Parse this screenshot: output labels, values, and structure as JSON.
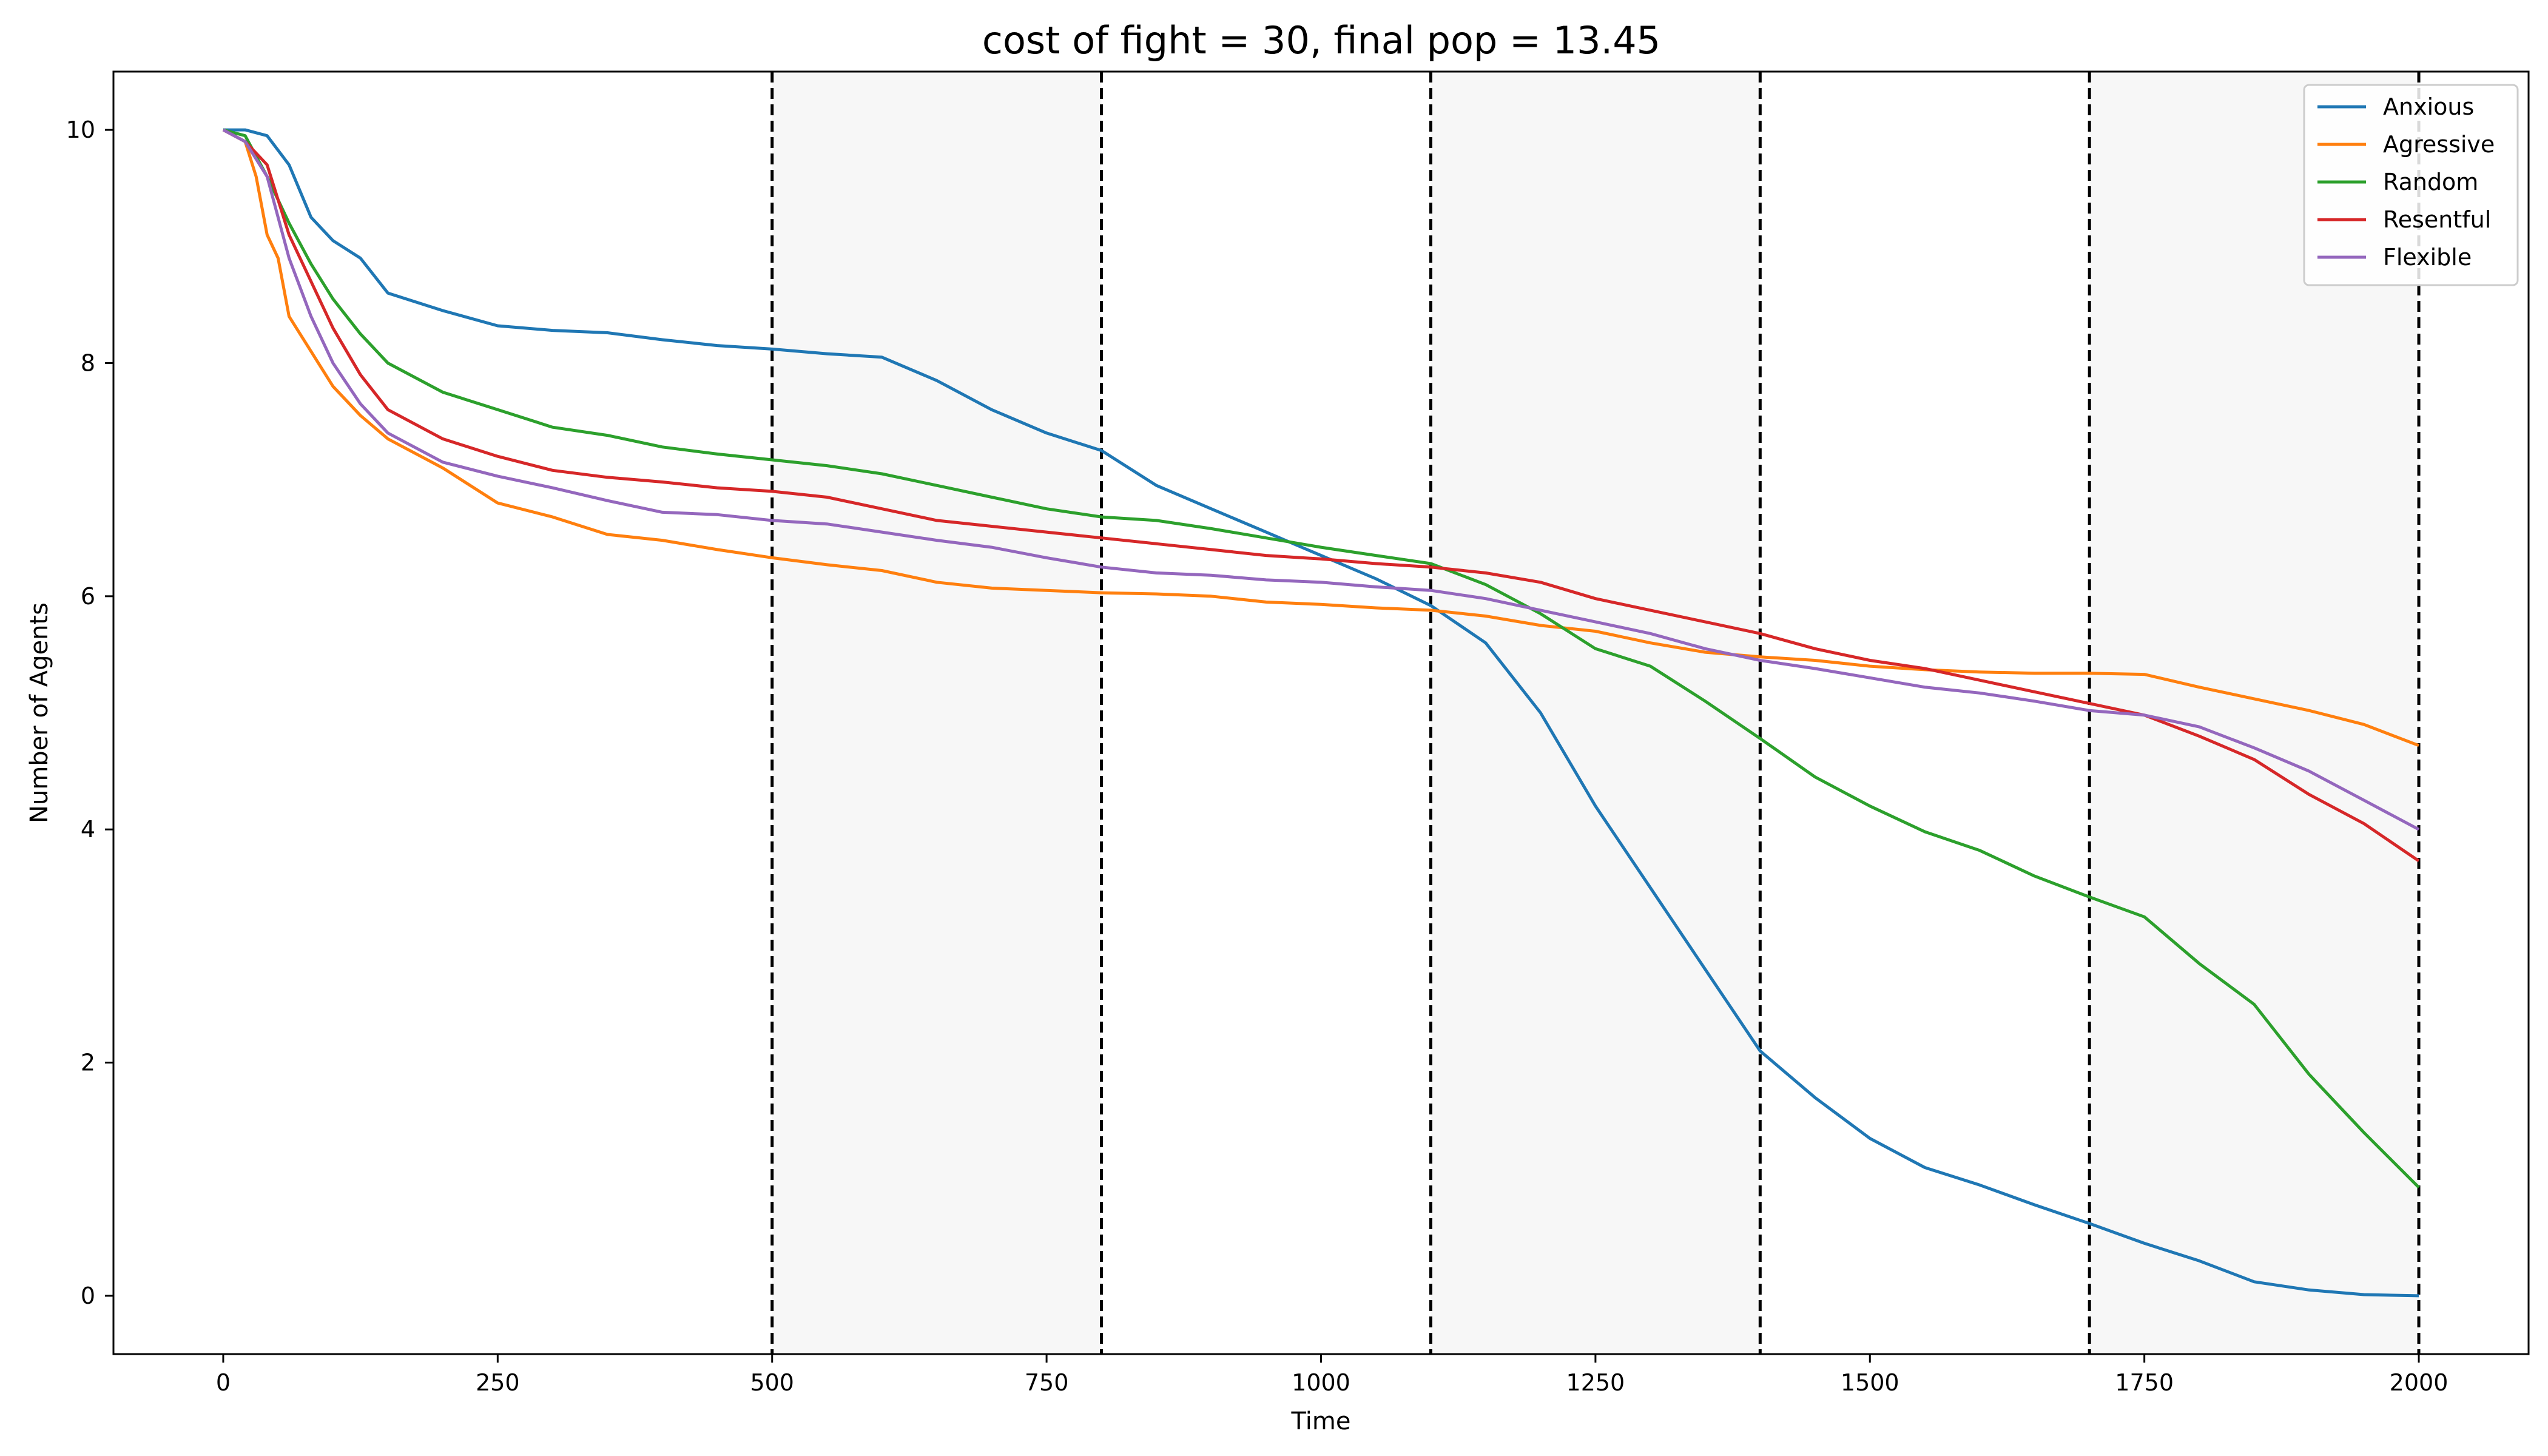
{
  "chart_data": {
    "type": "line",
    "title": "cost of fight = 30, final pop = 13.45",
    "xlabel": "Time",
    "ylabel": "Number of Agents",
    "xlim": [
      -100,
      2100
    ],
    "ylim": [
      -0.5,
      10.5
    ],
    "xticks": [
      0,
      250,
      500,
      750,
      1000,
      1250,
      1500,
      1750,
      2000
    ],
    "yticks": [
      0,
      2,
      4,
      6,
      8,
      10
    ],
    "grid": false,
    "legend_position": "top-right",
    "shaded_intervals": [
      [
        500,
        800
      ],
      [
        1100,
        1400
      ],
      [
        1700,
        2000
      ]
    ],
    "vertical_lines": [
      500,
      800,
      1100,
      1400,
      1700,
      2000
    ],
    "series": [
      {
        "name": "Anxious",
        "color": "#1f77b4",
        "points": [
          [
            0,
            10
          ],
          [
            20,
            10
          ],
          [
            40,
            9.95
          ],
          [
            60,
            9.7
          ],
          [
            80,
            9.25
          ],
          [
            100,
            9.05
          ],
          [
            125,
            8.9
          ],
          [
            150,
            8.6
          ],
          [
            200,
            8.45
          ],
          [
            250,
            8.32
          ],
          [
            300,
            8.28
          ],
          [
            350,
            8.26
          ],
          [
            400,
            8.2
          ],
          [
            450,
            8.15
          ],
          [
            500,
            8.12
          ],
          [
            550,
            8.08
          ],
          [
            600,
            8.05
          ],
          [
            650,
            7.85
          ],
          [
            700,
            7.6
          ],
          [
            750,
            7.4
          ],
          [
            800,
            7.25
          ],
          [
            850,
            6.95
          ],
          [
            900,
            6.75
          ],
          [
            950,
            6.55
          ],
          [
            1000,
            6.35
          ],
          [
            1050,
            6.15
          ],
          [
            1100,
            5.92
          ],
          [
            1150,
            5.6
          ],
          [
            1200,
            5.0
          ],
          [
            1250,
            4.2
          ],
          [
            1300,
            3.5
          ],
          [
            1350,
            2.8
          ],
          [
            1400,
            2.1
          ],
          [
            1450,
            1.7
          ],
          [
            1500,
            1.35
          ],
          [
            1550,
            1.1
          ],
          [
            1600,
            0.95
          ],
          [
            1650,
            0.78
          ],
          [
            1700,
            0.62
          ],
          [
            1750,
            0.45
          ],
          [
            1800,
            0.3
          ],
          [
            1850,
            0.12
          ],
          [
            1900,
            0.05
          ],
          [
            1950,
            0.01
          ],
          [
            2000,
            0.0
          ]
        ]
      },
      {
        "name": "Agressive",
        "color": "#ff7f0e",
        "points": [
          [
            0,
            10
          ],
          [
            20,
            9.9
          ],
          [
            30,
            9.6
          ],
          [
            40,
            9.1
          ],
          [
            50,
            8.9
          ],
          [
            60,
            8.4
          ],
          [
            80,
            8.1
          ],
          [
            100,
            7.8
          ],
          [
            125,
            7.55
          ],
          [
            150,
            7.35
          ],
          [
            200,
            7.1
          ],
          [
            250,
            6.8
          ],
          [
            300,
            6.68
          ],
          [
            350,
            6.53
          ],
          [
            400,
            6.48
          ],
          [
            450,
            6.4
          ],
          [
            500,
            6.33
          ],
          [
            550,
            6.27
          ],
          [
            600,
            6.22
          ],
          [
            650,
            6.12
          ],
          [
            700,
            6.07
          ],
          [
            750,
            6.05
          ],
          [
            800,
            6.03
          ],
          [
            850,
            6.02
          ],
          [
            900,
            6.0
          ],
          [
            950,
            5.95
          ],
          [
            1000,
            5.93
          ],
          [
            1050,
            5.9
          ],
          [
            1100,
            5.88
          ],
          [
            1150,
            5.83
          ],
          [
            1200,
            5.75
          ],
          [
            1250,
            5.7
          ],
          [
            1300,
            5.6
          ],
          [
            1350,
            5.52
          ],
          [
            1400,
            5.48
          ],
          [
            1450,
            5.45
          ],
          [
            1500,
            5.4
          ],
          [
            1550,
            5.37
          ],
          [
            1600,
            5.35
          ],
          [
            1650,
            5.34
          ],
          [
            1700,
            5.34
          ],
          [
            1750,
            5.33
          ],
          [
            1800,
            5.22
          ],
          [
            1850,
            5.12
          ],
          [
            1900,
            5.02
          ],
          [
            1950,
            4.9
          ],
          [
            2000,
            4.72
          ]
        ]
      },
      {
        "name": "Random",
        "color": "#2ca02c",
        "points": [
          [
            0,
            10
          ],
          [
            20,
            9.95
          ],
          [
            40,
            9.6
          ],
          [
            60,
            9.2
          ],
          [
            80,
            8.85
          ],
          [
            100,
            8.55
          ],
          [
            125,
            8.25
          ],
          [
            150,
            8.0
          ],
          [
            200,
            7.75
          ],
          [
            250,
            7.6
          ],
          [
            300,
            7.45
          ],
          [
            350,
            7.38
          ],
          [
            400,
            7.28
          ],
          [
            450,
            7.22
          ],
          [
            500,
            7.17
          ],
          [
            550,
            7.12
          ],
          [
            600,
            7.05
          ],
          [
            650,
            6.95
          ],
          [
            700,
            6.85
          ],
          [
            750,
            6.75
          ],
          [
            800,
            6.68
          ],
          [
            850,
            6.65
          ],
          [
            900,
            6.58
          ],
          [
            950,
            6.5
          ],
          [
            1000,
            6.42
          ],
          [
            1050,
            6.35
          ],
          [
            1100,
            6.28
          ],
          [
            1150,
            6.1
          ],
          [
            1200,
            5.85
          ],
          [
            1250,
            5.55
          ],
          [
            1300,
            5.4
          ],
          [
            1350,
            5.1
          ],
          [
            1400,
            4.78
          ],
          [
            1450,
            4.45
          ],
          [
            1500,
            4.2
          ],
          [
            1550,
            3.98
          ],
          [
            1600,
            3.82
          ],
          [
            1650,
            3.6
          ],
          [
            1700,
            3.42
          ],
          [
            1750,
            3.25
          ],
          [
            1800,
            2.85
          ],
          [
            1850,
            2.5
          ],
          [
            1900,
            1.9
          ],
          [
            1950,
            1.4
          ],
          [
            2000,
            0.93
          ]
        ]
      },
      {
        "name": "Resentful",
        "color": "#d62728",
        "points": [
          [
            0,
            10
          ],
          [
            20,
            9.9
          ],
          [
            40,
            9.7
          ],
          [
            60,
            9.1
          ],
          [
            80,
            8.7
          ],
          [
            100,
            8.3
          ],
          [
            125,
            7.9
          ],
          [
            150,
            7.6
          ],
          [
            200,
            7.35
          ],
          [
            250,
            7.2
          ],
          [
            300,
            7.08
          ],
          [
            350,
            7.02
          ],
          [
            400,
            6.98
          ],
          [
            450,
            6.93
          ],
          [
            500,
            6.9
          ],
          [
            550,
            6.85
          ],
          [
            600,
            6.75
          ],
          [
            650,
            6.65
          ],
          [
            700,
            6.6
          ],
          [
            750,
            6.55
          ],
          [
            800,
            6.5
          ],
          [
            850,
            6.45
          ],
          [
            900,
            6.4
          ],
          [
            950,
            6.35
          ],
          [
            1000,
            6.32
          ],
          [
            1050,
            6.28
          ],
          [
            1100,
            6.25
          ],
          [
            1150,
            6.2
          ],
          [
            1200,
            6.12
          ],
          [
            1250,
            5.98
          ],
          [
            1300,
            5.88
          ],
          [
            1350,
            5.78
          ],
          [
            1400,
            5.68
          ],
          [
            1450,
            5.55
          ],
          [
            1500,
            5.45
          ],
          [
            1550,
            5.38
          ],
          [
            1600,
            5.28
          ],
          [
            1650,
            5.18
          ],
          [
            1700,
            5.08
          ],
          [
            1750,
            4.98
          ],
          [
            1800,
            4.8
          ],
          [
            1850,
            4.6
          ],
          [
            1900,
            4.3
          ],
          [
            1950,
            4.05
          ],
          [
            2000,
            3.73
          ]
        ]
      },
      {
        "name": "Flexible",
        "color": "#9467bd",
        "points": [
          [
            0,
            10
          ],
          [
            20,
            9.9
          ],
          [
            40,
            9.6
          ],
          [
            60,
            8.9
          ],
          [
            80,
            8.4
          ],
          [
            100,
            8.0
          ],
          [
            125,
            7.65
          ],
          [
            150,
            7.4
          ],
          [
            200,
            7.15
          ],
          [
            250,
            7.03
          ],
          [
            300,
            6.93
          ],
          [
            350,
            6.82
          ],
          [
            400,
            6.72
          ],
          [
            450,
            6.7
          ],
          [
            500,
            6.65
          ],
          [
            550,
            6.62
          ],
          [
            600,
            6.55
          ],
          [
            650,
            6.48
          ],
          [
            700,
            6.42
          ],
          [
            750,
            6.33
          ],
          [
            800,
            6.25
          ],
          [
            850,
            6.2
          ],
          [
            900,
            6.18
          ],
          [
            950,
            6.14
          ],
          [
            1000,
            6.12
          ],
          [
            1050,
            6.08
          ],
          [
            1100,
            6.05
          ],
          [
            1150,
            5.98
          ],
          [
            1200,
            5.88
          ],
          [
            1250,
            5.78
          ],
          [
            1300,
            5.68
          ],
          [
            1350,
            5.55
          ],
          [
            1400,
            5.45
          ],
          [
            1450,
            5.38
          ],
          [
            1500,
            5.3
          ],
          [
            1550,
            5.22
          ],
          [
            1600,
            5.17
          ],
          [
            1650,
            5.1
          ],
          [
            1700,
            5.02
          ],
          [
            1750,
            4.98
          ],
          [
            1800,
            4.88
          ],
          [
            1850,
            4.7
          ],
          [
            1900,
            4.5
          ],
          [
            1950,
            4.25
          ],
          [
            2000,
            4.0
          ]
        ]
      }
    ]
  }
}
